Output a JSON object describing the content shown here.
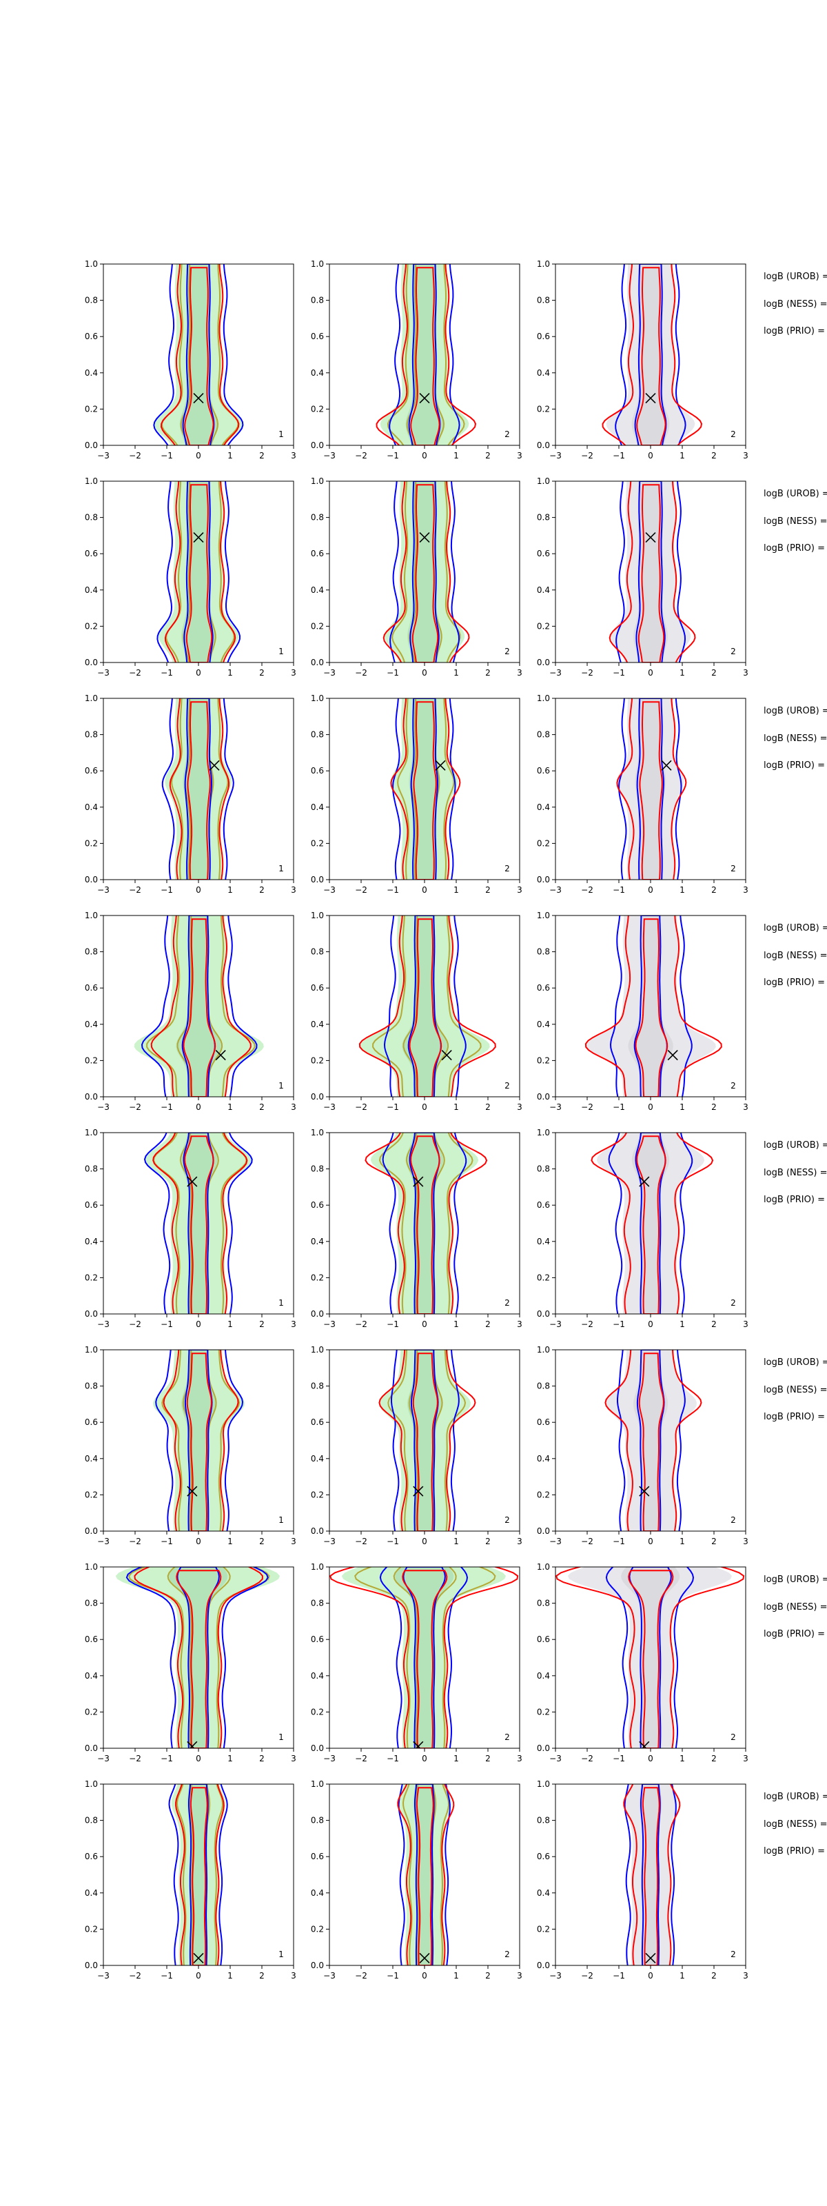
{
  "chart_data": {
    "type": "contour",
    "rows": 8,
    "cols": 3,
    "xlim": [
      -3,
      3
    ],
    "ylim": [
      0,
      1
    ],
    "xticks": [
      -3,
      -2,
      -1,
      0,
      1,
      2,
      3
    ],
    "yticks": [
      0.0,
      0.2,
      0.4,
      0.6,
      0.8,
      1.0
    ],
    "xtick_labels": [
      "−3",
      "−2",
      "−1",
      "0",
      "1",
      "2",
      "3"
    ],
    "ytick_labels": [
      "0.0",
      "0.2",
      "0.4",
      "0.6",
      "0.8",
      "1.0"
    ],
    "panel_tags": [
      "1",
      "2",
      "2"
    ],
    "colors": {
      "blue_contour": "#0000ff",
      "red_contour": "#ff0000",
      "olive_contour": "#b5a935",
      "green_fill": "#c6f2c6",
      "grey_fill": "#e6e6ea",
      "marker": "#000000"
    },
    "annotation_labels": [
      "logB (UROB) =",
      "logB (NESS) =",
      "logB (PRIO) ="
    ],
    "rows_data": [
      {
        "marker": [
          0.0,
          0.26
        ],
        "main_halfwidth": 0.35,
        "outer_halfwidth": 0.85,
        "bulge_y": 0.12,
        "bulge_width": 0.8
      },
      {
        "marker": [
          0.0,
          0.69
        ],
        "main_halfwidth": 0.35,
        "outer_halfwidth": 0.9,
        "bulge_y": 0.15,
        "bulge_width": 0.6
      },
      {
        "marker": [
          0.5,
          0.63
        ],
        "main_halfwidth": 0.35,
        "outer_halfwidth": 0.85,
        "bulge_y": 0.55,
        "bulge_width": 0.4
      },
      {
        "marker": [
          0.7,
          0.23
        ],
        "main_halfwidth": 0.3,
        "outer_halfwidth": 1.0,
        "bulge_y": 0.28,
        "bulge_width": 1.6
      },
      {
        "marker": [
          -0.2,
          0.73
        ],
        "main_halfwidth": 0.3,
        "outer_halfwidth": 1.0,
        "bulge_y": 0.85,
        "bulge_width": 1.0
      },
      {
        "marker": [
          -0.2,
          0.22
        ],
        "main_halfwidth": 0.3,
        "outer_halfwidth": 0.9,
        "bulge_y": 0.7,
        "bulge_width": 0.9
      },
      {
        "marker": [
          -0.2,
          0.01
        ],
        "main_halfwidth": 0.3,
        "outer_halfwidth": 0.8,
        "bulge_y": 0.95,
        "bulge_width": 2.4
      },
      {
        "marker": [
          0.0,
          0.04
        ],
        "main_halfwidth": 0.25,
        "outer_halfwidth": 0.7,
        "bulge_y": 0.9,
        "bulge_width": 0.3
      }
    ]
  }
}
